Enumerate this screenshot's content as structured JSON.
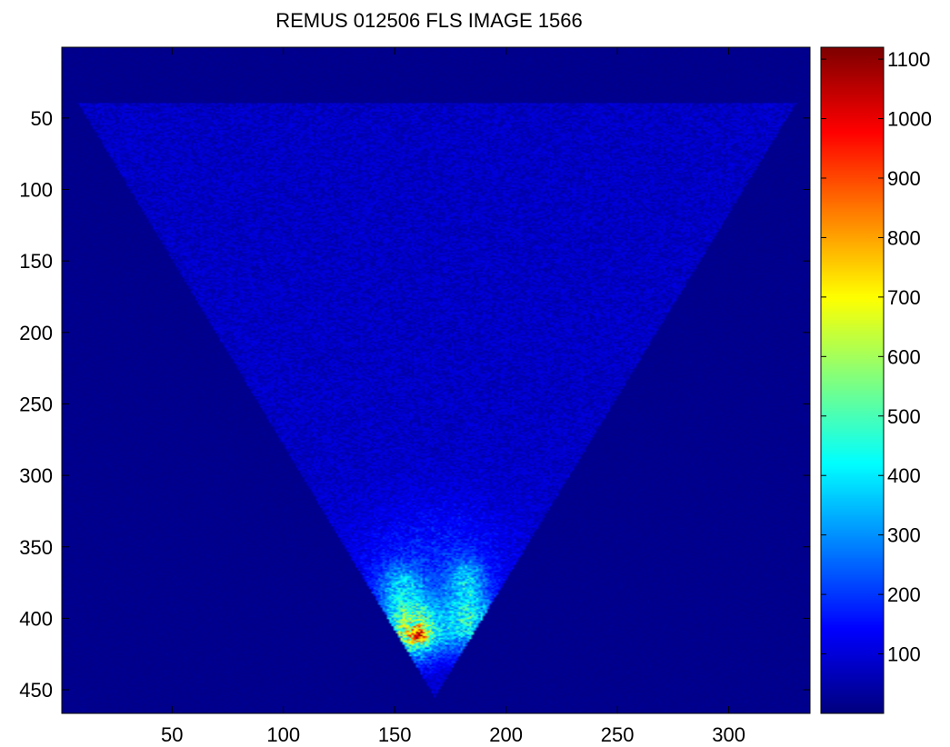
{
  "chart_data": {
    "type": "heatmap",
    "title": "REMUS 012506 FLS IMAGE 1566",
    "xlabel": "",
    "ylabel": "",
    "colormap": "jet",
    "x_range": [
      1,
      336
    ],
    "y_range": [
      1,
      466
    ],
    "y_reversed": true,
    "x_ticks": [
      50,
      100,
      150,
      200,
      250,
      300
    ],
    "y_ticks": [
      50,
      100,
      150,
      200,
      250,
      300,
      350,
      400,
      450
    ],
    "colorbar": {
      "range": [
        0,
        1120
      ],
      "ticks": [
        100,
        200,
        300,
        400,
        500,
        600,
        700,
        800,
        900,
        1000,
        1100
      ]
    },
    "background_value": 15,
    "wedge": {
      "apex_x": 168,
      "apex_y": 455,
      "top_y": 40,
      "left_x_at_top": 8,
      "right_x_at_top": 330,
      "base_value": 75
    },
    "hotspots": [
      {
        "x": 158,
        "y": 408,
        "sx": 9,
        "sy": 14,
        "amplitude": 520
      },
      {
        "x": 161,
        "y": 412,
        "sx": 3,
        "sy": 3,
        "amplitude": 500
      },
      {
        "x": 183,
        "y": 402,
        "sx": 8,
        "sy": 16,
        "amplitude": 320
      },
      {
        "x": 153,
        "y": 378,
        "sx": 8,
        "sy": 12,
        "amplitude": 200
      },
      {
        "x": 182,
        "y": 372,
        "sx": 6,
        "sy": 10,
        "amplitude": 180
      },
      {
        "x": 168,
        "y": 360,
        "sx": 26,
        "sy": 30,
        "amplitude": 90
      }
    ]
  }
}
